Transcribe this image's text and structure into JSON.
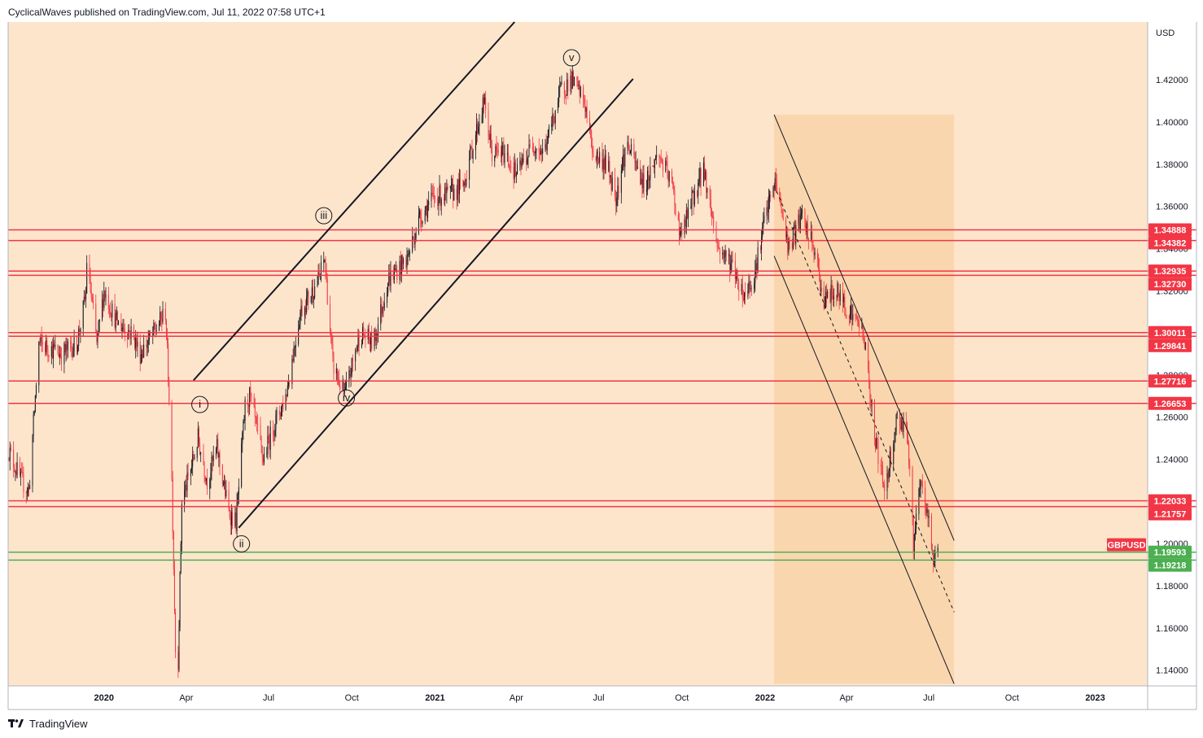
{
  "header": {
    "text": "CyclicalWaves published on TradingView.com, Jul 11, 2022 07:58 UTC+1"
  },
  "footer": {
    "brand": "TradingView"
  },
  "colors": {
    "plot_bg": "#fde5cc",
    "channel_fill": "#f9cc99",
    "red": "#f23645",
    "green": "#4caf50",
    "bull": "#131722",
    "bear": "#f23645"
  },
  "chart_data": {
    "type": "candlestick",
    "symbol": "GBPUSD",
    "currency_label": "USD",
    "ylim": [
      1.1325,
      1.4475
    ],
    "x_axis": {
      "start": "2019-09-17",
      "end": "2023-02-28",
      "ticks": [
        {
          "label": "2020",
          "date": "2020-01-01",
          "bold": true
        },
        {
          "label": "Apr",
          "date": "2020-04-01"
        },
        {
          "label": "Jul",
          "date": "2020-07-01"
        },
        {
          "label": "Oct",
          "date": "2020-10-01"
        },
        {
          "label": "2021",
          "date": "2021-01-01",
          "bold": true
        },
        {
          "label": "Apr",
          "date": "2021-04-01"
        },
        {
          "label": "Jul",
          "date": "2021-07-01"
        },
        {
          "label": "Oct",
          "date": "2021-10-01"
        },
        {
          "label": "2022",
          "date": "2022-01-01",
          "bold": true
        },
        {
          "label": "Apr",
          "date": "2022-04-01"
        },
        {
          "label": "Jul",
          "date": "2022-07-01"
        },
        {
          "label": "Oct",
          "date": "2022-10-01"
        },
        {
          "label": "2023",
          "date": "2023-01-01",
          "bold": true
        }
      ]
    },
    "y_ticks": [
      "1.42000",
      "1.40000",
      "1.38000",
      "1.36000",
      "1.34000",
      "1.32000",
      "1.28000",
      "1.26000",
      "1.24000",
      "1.20000",
      "1.18000",
      "1.16000",
      "1.14000"
    ],
    "horizontal_levels": [
      {
        "value": 1.34888,
        "label": "1.34888",
        "color": "red"
      },
      {
        "value": 1.34382,
        "label": "1.34382",
        "color": "red"
      },
      {
        "value": 1.32935,
        "label": "1.32935",
        "color": "red"
      },
      {
        "value": 1.3273,
        "label": "1.32730",
        "color": "red"
      },
      {
        "value": 1.30011,
        "label": "1.30011",
        "color": "red"
      },
      {
        "value": 1.29841,
        "label": "1.29841",
        "color": "red"
      },
      {
        "value": 1.27716,
        "label": "1.27716",
        "color": "red"
      },
      {
        "value": 1.26653,
        "label": "1.26653",
        "color": "red"
      },
      {
        "value": 1.22033,
        "label": "1.22033",
        "color": "red"
      },
      {
        "value": 1.21757,
        "label": "1.21757",
        "color": "red"
      },
      {
        "value": 1.19593,
        "label": "1.19593",
        "color": "green"
      },
      {
        "value": 1.19218,
        "label": "1.19218",
        "color": "green"
      }
    ],
    "price_badge": {
      "label": "GBPUSD",
      "value": 1.1995
    },
    "path": [
      [
        "2019-09-17",
        1.245
      ],
      [
        "2019-10-01",
        1.23
      ],
      [
        "2019-10-10",
        1.225
      ],
      [
        "2019-10-21",
        1.295
      ],
      [
        "2019-11-01",
        1.293
      ],
      [
        "2019-11-15",
        1.29
      ],
      [
        "2019-12-02",
        1.295
      ],
      [
        "2019-12-12",
        1.318
      ],
      [
        "2019-12-13",
        1.335
      ],
      [
        "2019-12-24",
        1.295
      ],
      [
        "2020-01-01",
        1.32
      ],
      [
        "2020-01-15",
        1.305
      ],
      [
        "2020-02-01",
        1.3
      ],
      [
        "2020-02-10",
        1.29
      ],
      [
        "2020-02-25",
        1.3
      ],
      [
        "2020-03-09",
        1.31
      ],
      [
        "2020-03-15",
        1.25
      ],
      [
        "2020-03-20",
        1.15
      ],
      [
        "2020-03-23",
        1.145
      ],
      [
        "2020-03-27",
        1.22
      ],
      [
        "2020-04-06",
        1.235
      ],
      [
        "2020-04-14",
        1.25
      ],
      [
        "2020-04-24",
        1.23
      ],
      [
        "2020-05-05",
        1.245
      ],
      [
        "2020-05-18",
        1.215
      ],
      [
        "2020-05-26",
        1.21
      ],
      [
        "2020-06-05",
        1.265
      ],
      [
        "2020-06-10",
        1.27
      ],
      [
        "2020-06-25",
        1.24
      ],
      [
        "2020-07-06",
        1.255
      ],
      [
        "2020-07-20",
        1.27
      ],
      [
        "2020-08-05",
        1.31
      ],
      [
        "2020-08-25",
        1.325
      ],
      [
        "2020-09-01",
        1.335
      ],
      [
        "2020-09-10",
        1.285
      ],
      [
        "2020-09-23",
        1.27
      ],
      [
        "2020-10-10",
        1.3
      ],
      [
        "2020-10-25",
        1.295
      ],
      [
        "2020-11-10",
        1.325
      ],
      [
        "2020-12-01",
        1.335
      ],
      [
        "2020-12-15",
        1.355
      ],
      [
        "2021-01-01",
        1.365
      ],
      [
        "2021-01-15",
        1.365
      ],
      [
        "2021-02-01",
        1.37
      ],
      [
        "2021-02-24",
        1.41
      ],
      [
        "2021-03-05",
        1.385
      ],
      [
        "2021-03-20",
        1.385
      ],
      [
        "2021-04-01",
        1.375
      ],
      [
        "2021-04-20",
        1.39
      ],
      [
        "2021-05-01",
        1.385
      ],
      [
        "2021-05-20",
        1.415
      ],
      [
        "2021-06-01",
        1.42
      ],
      [
        "2021-06-15",
        1.41
      ],
      [
        "2021-06-25",
        1.385
      ],
      [
        "2021-07-10",
        1.38
      ],
      [
        "2021-07-20",
        1.365
      ],
      [
        "2021-08-01",
        1.39
      ],
      [
        "2021-08-20",
        1.37
      ],
      [
        "2021-09-05",
        1.385
      ],
      [
        "2021-09-20",
        1.37
      ],
      [
        "2021-09-30",
        1.345
      ],
      [
        "2021-10-10",
        1.36
      ],
      [
        "2021-10-25",
        1.378
      ],
      [
        "2021-11-10",
        1.34
      ],
      [
        "2021-11-25",
        1.333
      ],
      [
        "2021-12-08",
        1.318
      ],
      [
        "2021-12-20",
        1.327
      ],
      [
        "2022-01-01",
        1.355
      ],
      [
        "2022-01-13",
        1.372
      ],
      [
        "2022-01-27",
        1.34
      ],
      [
        "2022-02-10",
        1.355
      ],
      [
        "2022-02-24",
        1.34
      ],
      [
        "2022-03-07",
        1.315
      ],
      [
        "2022-03-20",
        1.32
      ],
      [
        "2022-04-05",
        1.31
      ],
      [
        "2022-04-20",
        1.3
      ],
      [
        "2022-05-01",
        1.255
      ],
      [
        "2022-05-13",
        1.225
      ],
      [
        "2022-05-27",
        1.26
      ],
      [
        "2022-06-07",
        1.255
      ],
      [
        "2022-06-14",
        1.2
      ],
      [
        "2022-06-22",
        1.228
      ],
      [
        "2022-07-01",
        1.21
      ],
      [
        "2022-07-06",
        1.192
      ],
      [
        "2022-07-11",
        1.1995
      ]
    ],
    "candle_start": "2019-09-17",
    "candle_end": "2022-07-11",
    "channels": [
      {
        "name": "impulse-upper",
        "style": "solid",
        "points": [
          [
            "2020-04-09",
            1.2775
          ],
          [
            "2021-03-30",
            1.4475
          ]
        ]
      },
      {
        "name": "impulse-lower",
        "style": "solid",
        "points": [
          [
            "2020-05-29",
            1.2075
          ],
          [
            "2021-08-08",
            1.4205
          ]
        ]
      },
      {
        "name": "down-upper",
        "style": "solid",
        "points": [
          [
            "2022-01-11",
            1.4035
          ],
          [
            "2022-07-29",
            1.2015
          ]
        ]
      },
      {
        "name": "down-lower",
        "style": "solid",
        "points": [
          [
            "2022-01-11",
            1.3365
          ],
          [
            "2022-07-29",
            1.1335
          ]
        ]
      },
      {
        "name": "down-mid",
        "style": "dashed",
        "points": [
          [
            "2022-01-11",
            1.37
          ],
          [
            "2022-07-29",
            1.1675
          ]
        ]
      }
    ],
    "channel_fill": {
      "start": "2022-01-11",
      "end": "2022-07-29",
      "ytop": 1.4035,
      "ybottom": 1.1335
    },
    "wave_labels": [
      {
        "label": "i",
        "date": "2020-04-16",
        "value": 1.266
      },
      {
        "label": "ii",
        "date": "2020-06-01",
        "value": 1.1999
      },
      {
        "label": "iii",
        "date": "2020-08-31",
        "value": 1.3556
      },
      {
        "label": "iv",
        "date": "2020-09-25",
        "value": 1.2691
      },
      {
        "label": "v",
        "date": "2021-06-01",
        "value": 1.4305
      }
    ]
  }
}
